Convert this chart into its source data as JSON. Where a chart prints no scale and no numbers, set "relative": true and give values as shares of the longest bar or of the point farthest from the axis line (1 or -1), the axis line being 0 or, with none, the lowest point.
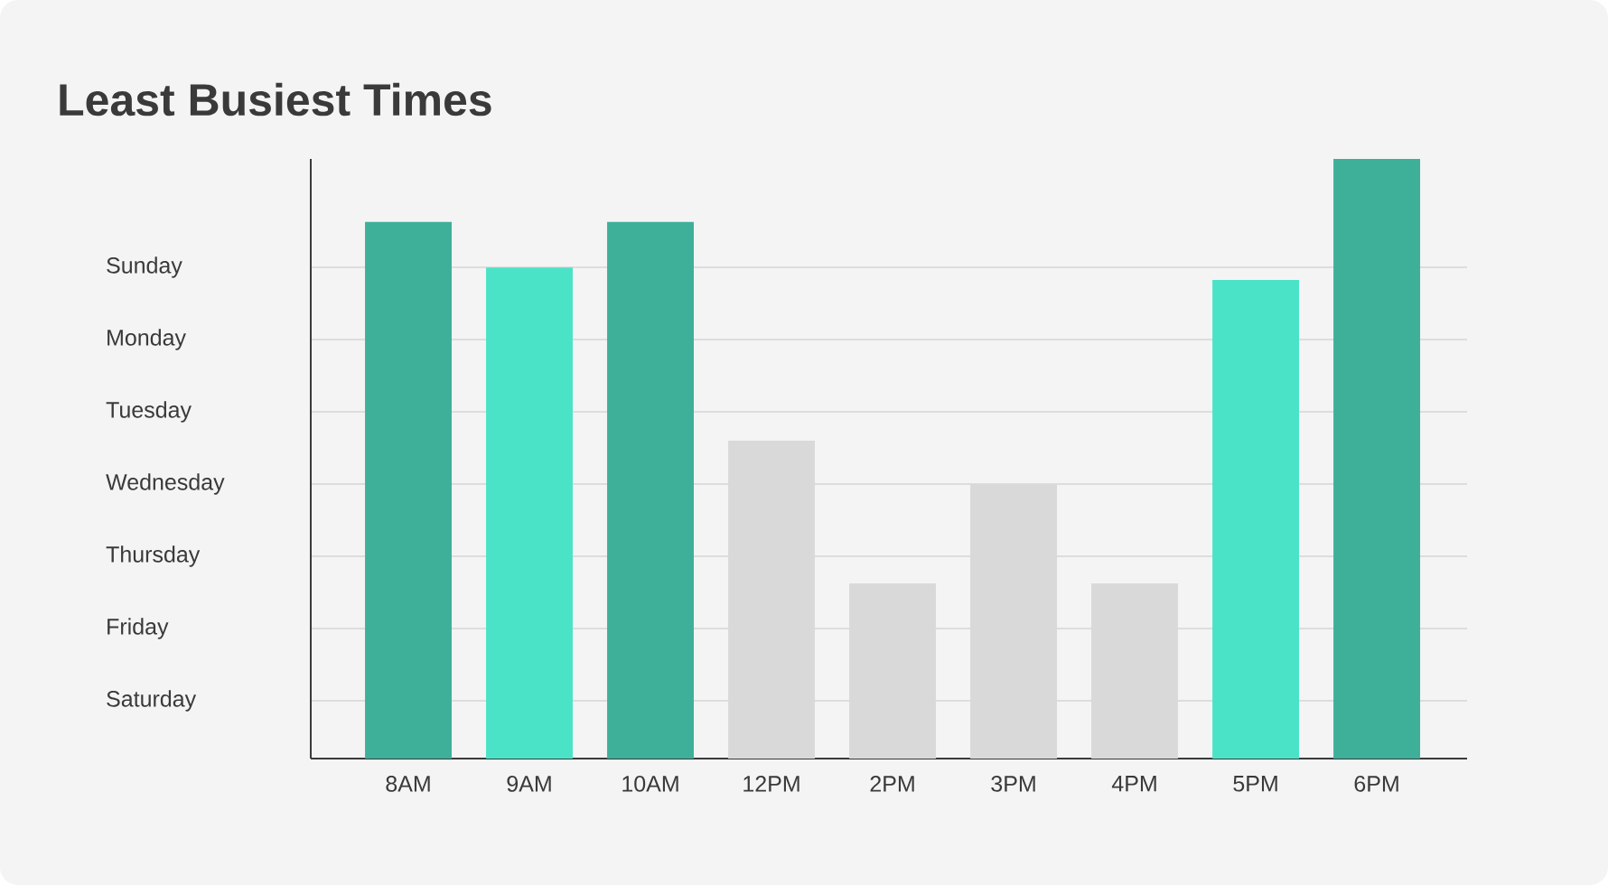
{
  "chart_data": {
    "type": "bar",
    "title": "Least Busiest Times",
    "relative": true,
    "categories": [
      "8AM",
      "9AM",
      "10AM",
      "12PM",
      "2PM",
      "3PM",
      "4PM",
      "5PM",
      "6PM"
    ],
    "values": [
      0.895,
      0.819,
      0.895,
      0.53,
      0.292,
      0.458,
      0.292,
      0.798,
      1.0
    ],
    "colors": [
      "#3eb09a",
      "#4be3c7",
      "#3eb09a",
      "#d9d9d9",
      "#d9d9d9",
      "#d9d9d9",
      "#d9d9d9",
      "#4be3c7",
      "#3eb09a"
    ],
    "annotations": [
      "Sunday",
      "Monday",
      "Tuesday",
      "Wednesday",
      "Thursday",
      "Friday",
      "Saturday"
    ],
    "grid": "y"
  }
}
